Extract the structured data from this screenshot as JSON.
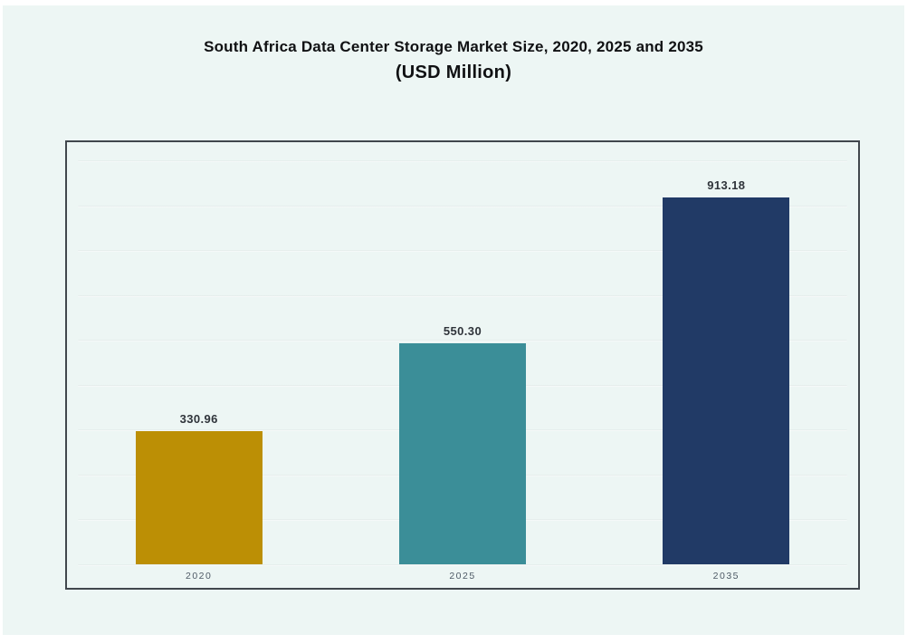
{
  "theme": {
    "canvas_background": "#edf6f4",
    "plot_border_color": "#41474d",
    "title_color": "#101113",
    "tick_label_color": "#4e5a66"
  },
  "chart_data": {
    "type": "bar",
    "title": "South Africa Data Center Storage Market Size, 2020, 2025 and 2035",
    "subtitle": "(USD Million)",
    "unit": "USD Million",
    "categories": [
      "2020",
      "2025",
      "2035"
    ],
    "values": [
      330.96,
      550.3,
      913.18
    ],
    "value_labels": [
      "330.96",
      "550.30",
      "913.18"
    ],
    "bar_colors": [
      "#bc8f05",
      "#3b8e98",
      "#213a66"
    ],
    "xlabel": "",
    "ylabel": "",
    "ylim": [
      0,
      1050
    ],
    "grid": true,
    "gridline_count": 10,
    "y_axis_tick_labels_visible": false,
    "legend_position": "none"
  }
}
